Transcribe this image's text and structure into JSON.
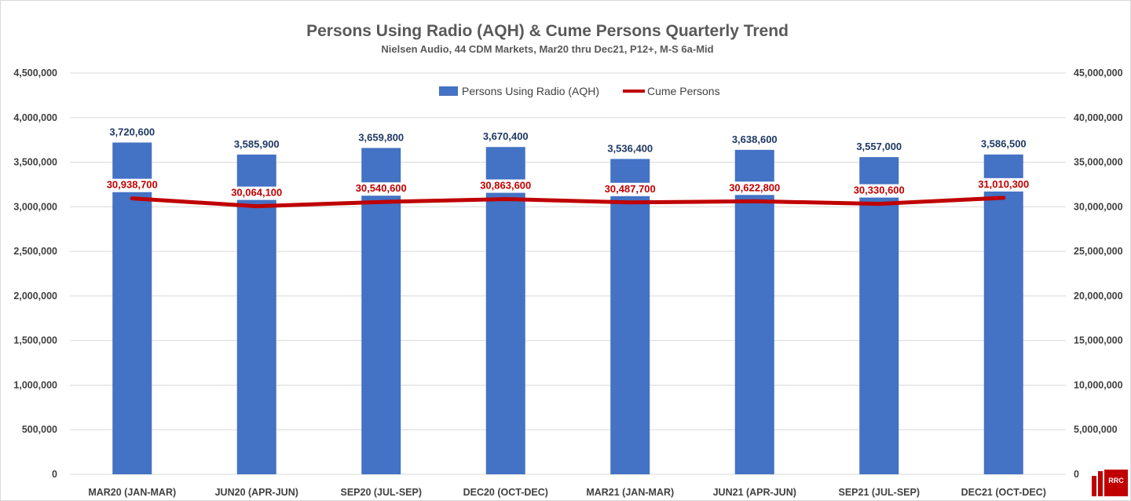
{
  "chart_data": {
    "type": "bar",
    "title": "Persons Using Radio (AQH)  & Cume Persons Quarterly Trend",
    "subtitle": "Nielsen Audio, 44 CDM Markets, Mar20 thru Dec21, P12+, M-S 6a-Mid",
    "categories": [
      "MAR20 (JAN-MAR)",
      "JUN20 (APR-JUN)",
      "SEP20 (JUL-SEP)",
      "DEC20 (OCT-DEC)",
      "MAR21 (JAN-MAR)",
      "JUN21 (APR-JUN)",
      "SEP21 (JUL-SEP)",
      "DEC21 (OCT-DEC)"
    ],
    "series": [
      {
        "name": "Persons Using Radio (AQH)",
        "type": "bar",
        "axis": "left",
        "color": "#4472c4",
        "values": [
          3720600,
          3585900,
          3659800,
          3670400,
          3536400,
          3638600,
          3557000,
          3586500
        ],
        "labels": [
          "3,720,600",
          "3,585,900",
          "3,659,800",
          "3,670,400",
          "3,536,400",
          "3,638,600",
          "3,557,000",
          "3,586,500"
        ]
      },
      {
        "name": "Cume Persons",
        "type": "line",
        "axis": "right",
        "color": "#c00000",
        "values": [
          30938700,
          30064100,
          30540600,
          30863600,
          30487700,
          30622800,
          30330600,
          31010300
        ],
        "labels": [
          "30,938,700",
          "30,064,100",
          "30,540,600",
          "30,863,600",
          "30,487,700",
          "30,622,800",
          "30,330,600",
          "31,010,300"
        ]
      }
    ],
    "y_left": {
      "range": [
        0,
        4500000
      ],
      "ticks": [
        "0",
        "500,000",
        "1,000,000",
        "1,500,000",
        "2,000,000",
        "2,500,000",
        "3,000,000",
        "3,500,000",
        "4,000,000",
        "4,500,000"
      ]
    },
    "y_right": {
      "range": [
        0,
        45000000
      ],
      "ticks": [
        "0",
        "5,000,000",
        "10,000,000",
        "15,000,000",
        "20,000,000",
        "25,000,000",
        "30,000,000",
        "35,000,000",
        "40,000,000",
        "45,000,000"
      ]
    },
    "grid": true,
    "legend_position": "top-center"
  },
  "logo": {
    "text": "RRC"
  }
}
